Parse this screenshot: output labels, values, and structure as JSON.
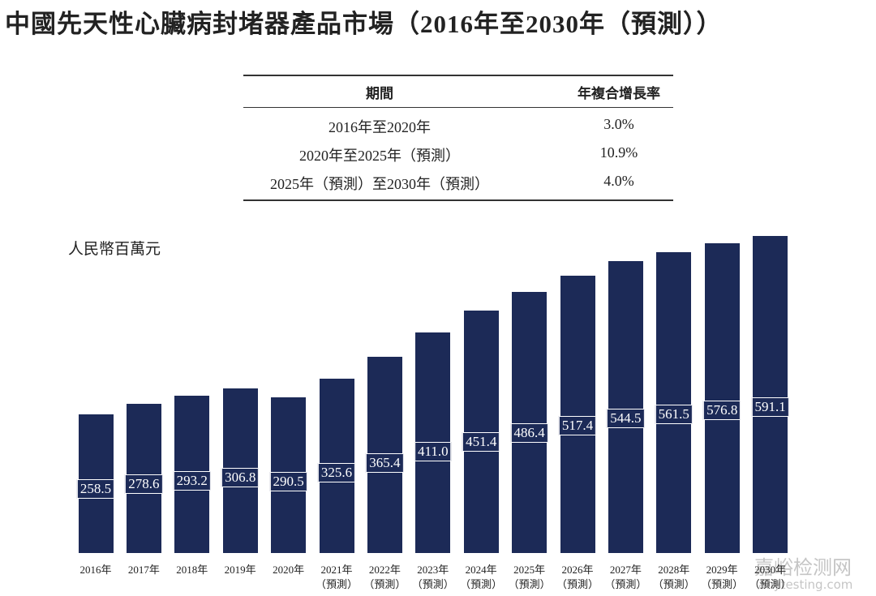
{
  "title": "中國先天性心臟病封堵器產品市場（2016年至2030年（預測））",
  "table": {
    "header": [
      "期間",
      "年複合增長率"
    ],
    "rows": [
      [
        "2016年至2020年",
        "3.0%"
      ],
      [
        "2020年至2025年（預測）",
        "10.9%"
      ],
      [
        "2025年（預測）至2030年（預測）",
        "4.0%"
      ]
    ]
  },
  "chart_data": {
    "type": "bar",
    "y_label": "人民幣百萬元",
    "color": "#1c2a57",
    "categories": [
      "2016年",
      "2017年",
      "2018年",
      "2019年",
      "2020年",
      "2021年（預測）",
      "2022年（預測）",
      "2023年（預測）",
      "2024年（預測）",
      "2025年（預測）",
      "2026年（預測）",
      "2027年（預測）",
      "2028年（預測）",
      "2029年（預測）",
      "2030年（預測）"
    ],
    "values": [
      258.5,
      278.6,
      293.2,
      306.8,
      290.5,
      325.6,
      365.4,
      411.0,
      451.4,
      486.4,
      517.4,
      544.5,
      561.5,
      576.8,
      591.1
    ],
    "value_labels": [
      "258.5",
      "278.6",
      "293.2",
      "306.8",
      "290.5",
      "325.6",
      "365.4",
      "411.0",
      "451.4",
      "486.4",
      "517.4",
      "544.5",
      "561.5",
      "576.8",
      "591.1"
    ]
  },
  "watermark": [
    "嘉峪检测网",
    "anytesting.com"
  ]
}
